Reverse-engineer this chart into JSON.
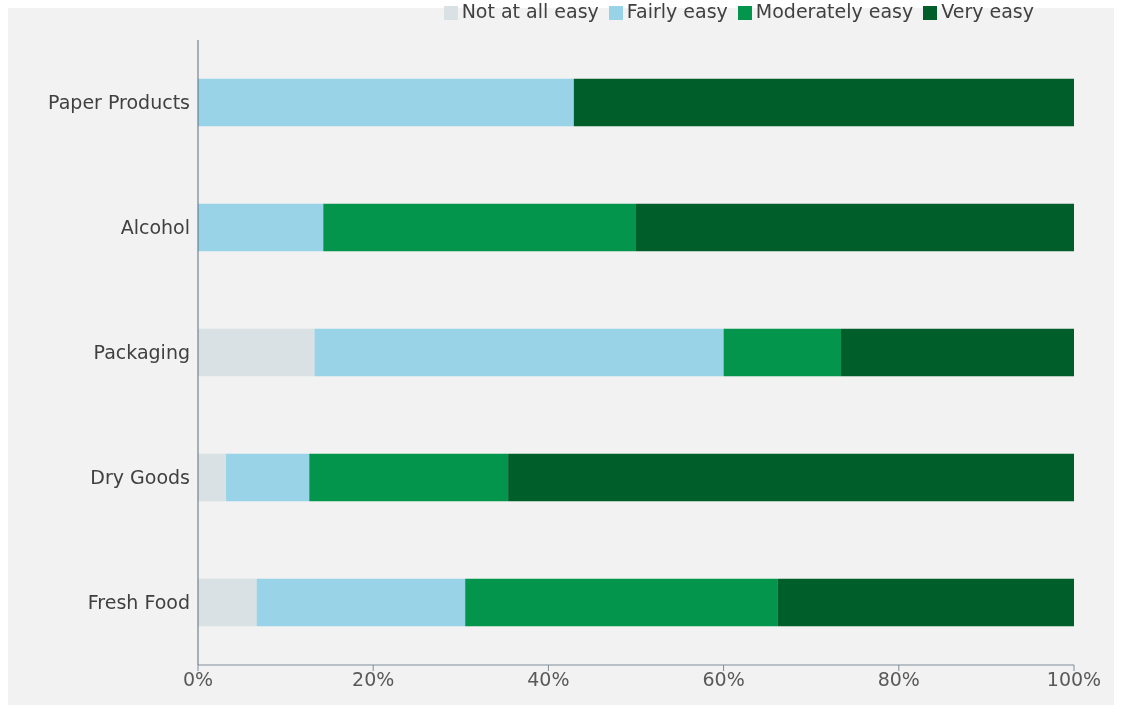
{
  "chart_data": {
    "type": "bar",
    "orientation": "horizontal",
    "stacked": true,
    "categories": [
      "Paper Products",
      "Alcohol",
      "Packaging",
      "Dry Goods",
      "Fresh Food"
    ],
    "series": [
      {
        "name": "Not at all easy",
        "color": "#d9e1e4",
        "values": [
          0,
          0,
          13.3,
          3.2,
          6.7
        ]
      },
      {
        "name": "Fairly easy",
        "color": "#99d3e8",
        "values": [
          42.9,
          14.3,
          46.7,
          9.5,
          23.8
        ]
      },
      {
        "name": "Moderately easy",
        "color": "#03954b",
        "values": [
          0,
          35.7,
          13.4,
          22.7,
          35.7
        ]
      },
      {
        "name": "Very easy",
        "color": "#005e2a",
        "values": [
          57.1,
          50,
          26.6,
          64.6,
          33.8
        ]
      }
    ],
    "xlim": [
      0,
      100
    ],
    "xticks": [
      {
        "value": 0,
        "label": "0%"
      },
      {
        "value": 20,
        "label": "20%"
      },
      {
        "value": 40,
        "label": "40%"
      },
      {
        "value": 60,
        "label": "60%"
      },
      {
        "value": 80,
        "label": "80%"
      },
      {
        "value": 100,
        "label": "100%"
      }
    ],
    "grid": false,
    "legend": "top right"
  }
}
